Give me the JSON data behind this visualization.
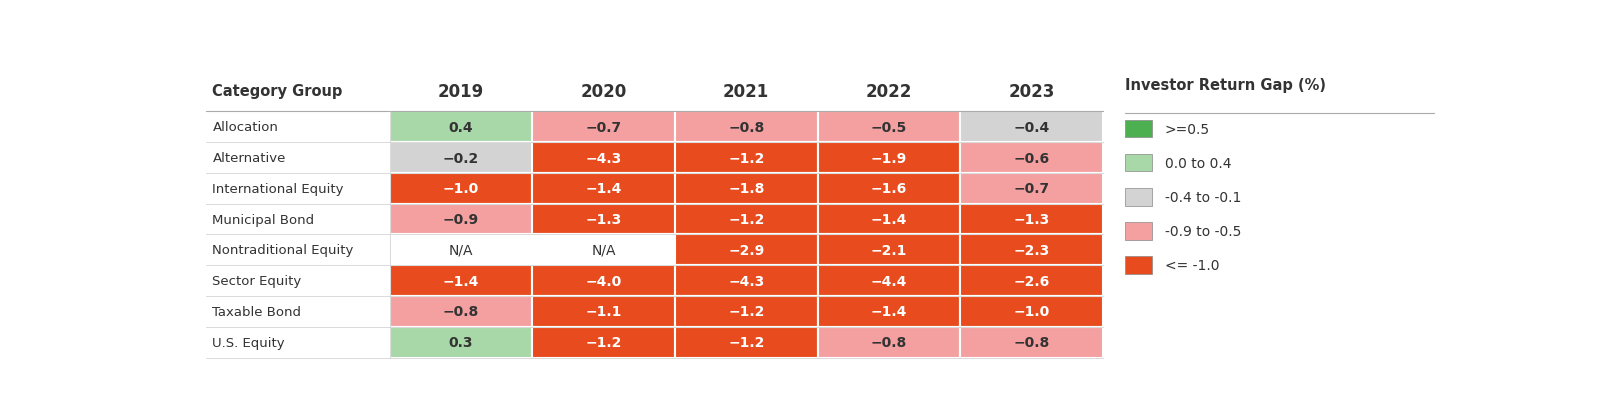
{
  "categories": [
    "Allocation",
    "Alternative",
    "International Equity",
    "Municipal Bond",
    "Nontraditional Equity",
    "Sector Equity",
    "Taxable Bond",
    "U.S. Equity"
  ],
  "years": [
    "2019",
    "2020",
    "2021",
    "2022",
    "2023"
  ],
  "values": [
    [
      0.4,
      -0.7,
      -0.8,
      -0.5,
      -0.4
    ],
    [
      -0.2,
      -4.3,
      -1.2,
      -1.9,
      -0.6
    ],
    [
      -1.0,
      -1.4,
      -1.8,
      -1.6,
      -0.7
    ],
    [
      -0.9,
      -1.3,
      -1.2,
      -1.4,
      -1.3
    ],
    [
      null,
      null,
      -2.9,
      -2.1,
      -2.3
    ],
    [
      -1.4,
      -4.0,
      -4.3,
      -4.4,
      -2.6
    ],
    [
      -0.8,
      -1.1,
      -1.2,
      -1.4,
      -1.0
    ],
    [
      0.3,
      -1.2,
      -1.2,
      -0.8,
      -0.8
    ]
  ],
  "color_gte_05": "#4caf50",
  "color_0_to_04": "#a8d8a8",
  "color_neg04_to_neg01": "#d3d3d3",
  "color_neg09_to_neg05": "#f4a0a0",
  "color_lte_neg10": "#e84c1e",
  "color_na": "#ffffff",
  "text_color_dark": "#333333",
  "text_color_light": "#ffffff",
  "header_color": "#333333",
  "legend_title": "Investor Return Gap (%)",
  "legend_items": [
    {
      "label": ">=0.5",
      "color": "#4caf50"
    },
    {
      "label": "0.0 to 0.4",
      "color": "#a8d8a8"
    },
    {
      "label": "-0.4 to -0.1",
      "color": "#d3d3d3"
    },
    {
      "label": "-0.9 to -0.5",
      "color": "#f4a0a0"
    },
    {
      "label": "<= -1.0",
      "color": "#e84c1e"
    }
  ],
  "col_header": "Category Group",
  "background_color": "#ffffff"
}
